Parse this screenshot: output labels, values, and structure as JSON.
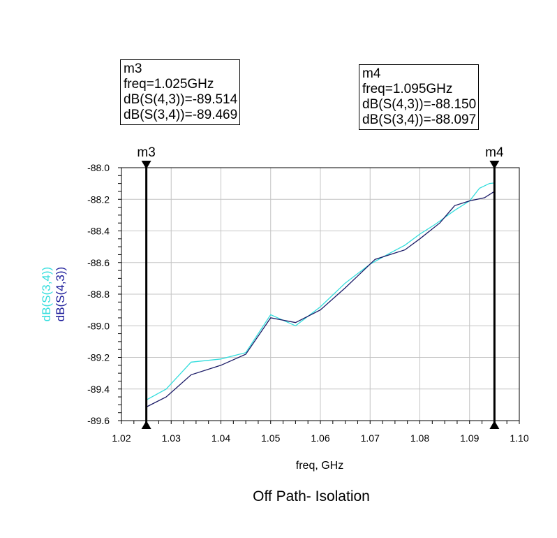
{
  "chart_data": {
    "type": "line",
    "title": "Off Path- Isolation",
    "xlabel": "freq, GHz",
    "ylabel_series": [
      "dB(S(3,4))",
      "dB(S(4,3))"
    ],
    "xlim": [
      1.02,
      1.1
    ],
    "ylim": [
      -89.6,
      -88.0
    ],
    "x_ticks": [
      "1.02",
      "1.03",
      "1.04",
      "1.05",
      "1.06",
      "1.07",
      "1.08",
      "1.09",
      "1.10"
    ],
    "y_ticks": [
      "-88.0",
      "-88.2",
      "-88.4",
      "-88.6",
      "-88.8",
      "-89.0",
      "-89.2",
      "-89.4",
      "-89.6"
    ],
    "grid": true,
    "series": [
      {
        "name": "dB(S(3,4))",
        "color": "#33dddd",
        "x": [
          1.025,
          1.029,
          1.034,
          1.04,
          1.045,
          1.05,
          1.055,
          1.06,
          1.065,
          1.07,
          1.074,
          1.077,
          1.08,
          1.083,
          1.087,
          1.09,
          1.092,
          1.094,
          1.095
        ],
        "y": [
          -89.469,
          -89.4,
          -89.23,
          -89.21,
          -89.17,
          -88.93,
          -89.0,
          -88.88,
          -88.73,
          -88.61,
          -88.54,
          -88.49,
          -88.42,
          -88.36,
          -88.27,
          -88.21,
          -88.13,
          -88.1,
          -88.097
        ]
      },
      {
        "name": "dB(S(4,3))",
        "color": "#1a1a66",
        "x": [
          1.025,
          1.029,
          1.034,
          1.04,
          1.045,
          1.05,
          1.055,
          1.06,
          1.065,
          1.071,
          1.074,
          1.077,
          1.08,
          1.084,
          1.087,
          1.09,
          1.093,
          1.095
        ],
        "y": [
          -89.514,
          -89.45,
          -89.31,
          -89.25,
          -89.18,
          -88.95,
          -88.98,
          -88.9,
          -88.76,
          -88.58,
          -88.55,
          -88.52,
          -88.45,
          -88.35,
          -88.24,
          -88.21,
          -88.19,
          -88.15
        ]
      }
    ],
    "markers": [
      {
        "name": "m3",
        "x": 1.025,
        "lines": [
          "m3",
          "freq=1.025GHz",
          "dB(S(4,3))=-89.514",
          "dB(S(3,4))=-89.469"
        ]
      },
      {
        "name": "m4",
        "x": 1.095,
        "lines": [
          "m4",
          "freq=1.095GHz",
          "dB(S(4,3))=-88.150",
          "dB(S(3,4))=-88.097"
        ]
      }
    ]
  }
}
